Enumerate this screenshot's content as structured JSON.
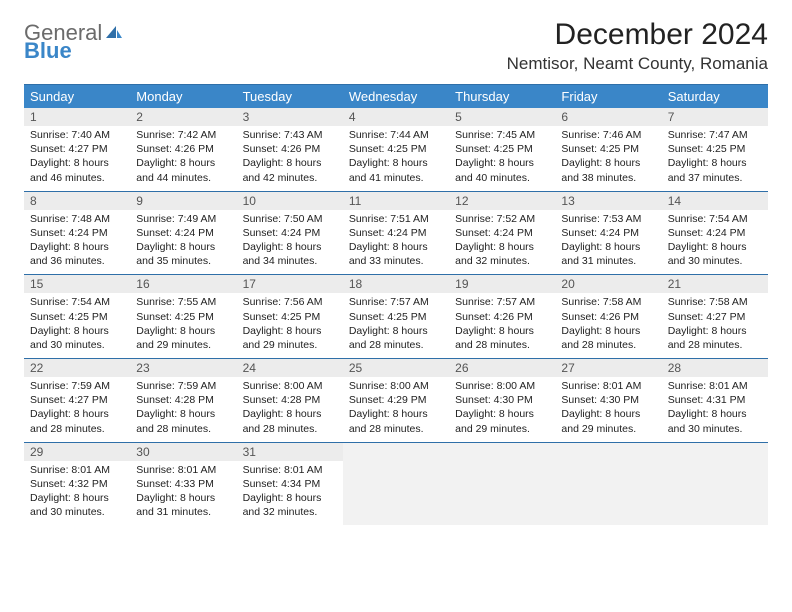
{
  "logo": {
    "line1": "General",
    "line2": "Blue",
    "color_general": "#6b6b6b",
    "color_blue": "#3a86c8"
  },
  "title": "December 2024",
  "location": "Nemtisor, Neamt County, Romania",
  "colors": {
    "header_bg": "#3a86c8",
    "divider": "#2f6fa8",
    "daynum_bg": "#ececec",
    "empty_bg": "#f2f2f2",
    "text": "#222222"
  },
  "fonts": {
    "title_size": 30,
    "location_size": 17,
    "weekday_size": 13,
    "daynum_size": 12,
    "body_size": 10.5
  },
  "weekdays": [
    "Sunday",
    "Monday",
    "Tuesday",
    "Wednesday",
    "Thursday",
    "Friday",
    "Saturday"
  ],
  "weeks": [
    [
      {
        "n": "1",
        "sunrise": "Sunrise: 7:40 AM",
        "sunset": "Sunset: 4:27 PM",
        "daylight": "Daylight: 8 hours and 46 minutes."
      },
      {
        "n": "2",
        "sunrise": "Sunrise: 7:42 AM",
        "sunset": "Sunset: 4:26 PM",
        "daylight": "Daylight: 8 hours and 44 minutes."
      },
      {
        "n": "3",
        "sunrise": "Sunrise: 7:43 AM",
        "sunset": "Sunset: 4:26 PM",
        "daylight": "Daylight: 8 hours and 42 minutes."
      },
      {
        "n": "4",
        "sunrise": "Sunrise: 7:44 AM",
        "sunset": "Sunset: 4:25 PM",
        "daylight": "Daylight: 8 hours and 41 minutes."
      },
      {
        "n": "5",
        "sunrise": "Sunrise: 7:45 AM",
        "sunset": "Sunset: 4:25 PM",
        "daylight": "Daylight: 8 hours and 40 minutes."
      },
      {
        "n": "6",
        "sunrise": "Sunrise: 7:46 AM",
        "sunset": "Sunset: 4:25 PM",
        "daylight": "Daylight: 8 hours and 38 minutes."
      },
      {
        "n": "7",
        "sunrise": "Sunrise: 7:47 AM",
        "sunset": "Sunset: 4:25 PM",
        "daylight": "Daylight: 8 hours and 37 minutes."
      }
    ],
    [
      {
        "n": "8",
        "sunrise": "Sunrise: 7:48 AM",
        "sunset": "Sunset: 4:24 PM",
        "daylight": "Daylight: 8 hours and 36 minutes."
      },
      {
        "n": "9",
        "sunrise": "Sunrise: 7:49 AM",
        "sunset": "Sunset: 4:24 PM",
        "daylight": "Daylight: 8 hours and 35 minutes."
      },
      {
        "n": "10",
        "sunrise": "Sunrise: 7:50 AM",
        "sunset": "Sunset: 4:24 PM",
        "daylight": "Daylight: 8 hours and 34 minutes."
      },
      {
        "n": "11",
        "sunrise": "Sunrise: 7:51 AM",
        "sunset": "Sunset: 4:24 PM",
        "daylight": "Daylight: 8 hours and 33 minutes."
      },
      {
        "n": "12",
        "sunrise": "Sunrise: 7:52 AM",
        "sunset": "Sunset: 4:24 PM",
        "daylight": "Daylight: 8 hours and 32 minutes."
      },
      {
        "n": "13",
        "sunrise": "Sunrise: 7:53 AM",
        "sunset": "Sunset: 4:24 PM",
        "daylight": "Daylight: 8 hours and 31 minutes."
      },
      {
        "n": "14",
        "sunrise": "Sunrise: 7:54 AM",
        "sunset": "Sunset: 4:24 PM",
        "daylight": "Daylight: 8 hours and 30 minutes."
      }
    ],
    [
      {
        "n": "15",
        "sunrise": "Sunrise: 7:54 AM",
        "sunset": "Sunset: 4:25 PM",
        "daylight": "Daylight: 8 hours and 30 minutes."
      },
      {
        "n": "16",
        "sunrise": "Sunrise: 7:55 AM",
        "sunset": "Sunset: 4:25 PM",
        "daylight": "Daylight: 8 hours and 29 minutes."
      },
      {
        "n": "17",
        "sunrise": "Sunrise: 7:56 AM",
        "sunset": "Sunset: 4:25 PM",
        "daylight": "Daylight: 8 hours and 29 minutes."
      },
      {
        "n": "18",
        "sunrise": "Sunrise: 7:57 AM",
        "sunset": "Sunset: 4:25 PM",
        "daylight": "Daylight: 8 hours and 28 minutes."
      },
      {
        "n": "19",
        "sunrise": "Sunrise: 7:57 AM",
        "sunset": "Sunset: 4:26 PM",
        "daylight": "Daylight: 8 hours and 28 minutes."
      },
      {
        "n": "20",
        "sunrise": "Sunrise: 7:58 AM",
        "sunset": "Sunset: 4:26 PM",
        "daylight": "Daylight: 8 hours and 28 minutes."
      },
      {
        "n": "21",
        "sunrise": "Sunrise: 7:58 AM",
        "sunset": "Sunset: 4:27 PM",
        "daylight": "Daylight: 8 hours and 28 minutes."
      }
    ],
    [
      {
        "n": "22",
        "sunrise": "Sunrise: 7:59 AM",
        "sunset": "Sunset: 4:27 PM",
        "daylight": "Daylight: 8 hours and 28 minutes."
      },
      {
        "n": "23",
        "sunrise": "Sunrise: 7:59 AM",
        "sunset": "Sunset: 4:28 PM",
        "daylight": "Daylight: 8 hours and 28 minutes."
      },
      {
        "n": "24",
        "sunrise": "Sunrise: 8:00 AM",
        "sunset": "Sunset: 4:28 PM",
        "daylight": "Daylight: 8 hours and 28 minutes."
      },
      {
        "n": "25",
        "sunrise": "Sunrise: 8:00 AM",
        "sunset": "Sunset: 4:29 PM",
        "daylight": "Daylight: 8 hours and 28 minutes."
      },
      {
        "n": "26",
        "sunrise": "Sunrise: 8:00 AM",
        "sunset": "Sunset: 4:30 PM",
        "daylight": "Daylight: 8 hours and 29 minutes."
      },
      {
        "n": "27",
        "sunrise": "Sunrise: 8:01 AM",
        "sunset": "Sunset: 4:30 PM",
        "daylight": "Daylight: 8 hours and 29 minutes."
      },
      {
        "n": "28",
        "sunrise": "Sunrise: 8:01 AM",
        "sunset": "Sunset: 4:31 PM",
        "daylight": "Daylight: 8 hours and 30 minutes."
      }
    ],
    [
      {
        "n": "29",
        "sunrise": "Sunrise: 8:01 AM",
        "sunset": "Sunset: 4:32 PM",
        "daylight": "Daylight: 8 hours and 30 minutes."
      },
      {
        "n": "30",
        "sunrise": "Sunrise: 8:01 AM",
        "sunset": "Sunset: 4:33 PM",
        "daylight": "Daylight: 8 hours and 31 minutes."
      },
      {
        "n": "31",
        "sunrise": "Sunrise: 8:01 AM",
        "sunset": "Sunset: 4:34 PM",
        "daylight": "Daylight: 8 hours and 32 minutes."
      },
      null,
      null,
      null,
      null
    ]
  ]
}
